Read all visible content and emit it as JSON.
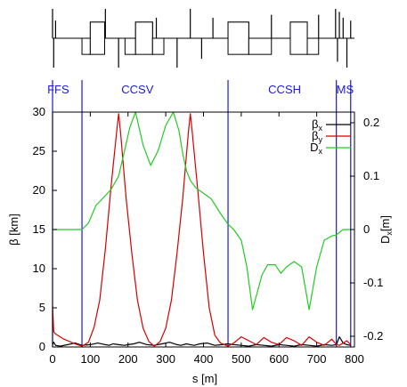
{
  "chart_data": {
    "type": "line",
    "xlabel": "s [m]",
    "ylabel_left": "β [km]",
    "ylabel_right": "D",
    "ylabel_right_sub": "x",
    "ylabel_right_unit": "[m]",
    "xlim": [
      0,
      800
    ],
    "ylim_left": [
      0,
      30
    ],
    "ylim_right": [
      -0.22,
      0.22
    ],
    "x_ticks": [
      "0",
      "100",
      "200",
      "300",
      "400",
      "500",
      "600",
      "700",
      "800"
    ],
    "x_tick_values": [
      0,
      100,
      200,
      300,
      400,
      500,
      600,
      700,
      800
    ],
    "y_left_ticks": [
      "0",
      "5",
      "10",
      "15",
      "20",
      "25",
      "30"
    ],
    "y_left_tick_values": [
      0,
      5,
      10,
      15,
      20,
      25,
      30
    ],
    "y_right_ticks": [
      "-0.2",
      "-0.1",
      "0",
      "0.1",
      "0.2"
    ],
    "y_right_tick_values": [
      -0.2,
      -0.1,
      0,
      0.1,
      0.2
    ],
    "grid": false,
    "legend_position": "top-right",
    "regions": [
      {
        "label": "FFS",
        "label_x": 15
      },
      {
        "label": "CCSV",
        "label_x": 225
      },
      {
        "label": "CCSH",
        "label_x": 615
      },
      {
        "label": "MS",
        "label_x": 775
      }
    ],
    "region_boundaries": [
      0,
      78,
      465,
      752,
      790
    ],
    "series": [
      {
        "name": "β",
        "name_sub": "x",
        "axis": "left",
        "color": "#000000",
        "x": [
          0,
          3,
          8,
          20,
          40,
          60,
          78,
          100,
          120,
          140,
          150,
          160,
          175,
          190,
          200,
          215,
          230,
          250,
          270,
          290,
          310,
          330,
          340,
          355,
          365,
          375,
          390,
          410,
          430,
          450,
          465,
          480,
          500,
          520,
          540,
          560,
          580,
          600,
          620,
          640,
          660,
          680,
          700,
          720,
          740,
          752,
          760,
          770,
          780,
          790
        ],
        "values": [
          0.3,
          0.6,
          0.2,
          0.1,
          0.3,
          0.5,
          0.2,
          0.3,
          0.5,
          0.3,
          0.2,
          0.4,
          0.3,
          0.2,
          0.3,
          0.4,
          0.6,
          0.3,
          0.2,
          0.4,
          0.6,
          0.3,
          0.2,
          0.4,
          0.3,
          0.2,
          0.4,
          0.5,
          0.2,
          0.3,
          0.4,
          0.3,
          0.2,
          0.1,
          0.3,
          0.2,
          0.1,
          0.3,
          0.2,
          0.1,
          0.3,
          0.2,
          0.1,
          0.3,
          0.2,
          0.3,
          1.3,
          0.5,
          0.3,
          0.2
        ]
      },
      {
        "name": "β",
        "name_sub": "y",
        "axis": "left",
        "color": "#d40000",
        "x": [
          0,
          3,
          5,
          10,
          30,
          60,
          78,
          95,
          110,
          125,
          140,
          155,
          170,
          175,
          180,
          195,
          210,
          225,
          240,
          255,
          270,
          285,
          300,
          315,
          330,
          345,
          360,
          365,
          370,
          385,
          400,
          415,
          430,
          445,
          465,
          480,
          500,
          520,
          540,
          560,
          580,
          600,
          620,
          640,
          660,
          680,
          700,
          720,
          740,
          752,
          760,
          770,
          780,
          790
        ],
        "values": [
          5.2,
          2.0,
          1.8,
          1.6,
          1.0,
          0.4,
          0.1,
          0.6,
          2.5,
          6.0,
          12.5,
          20.5,
          27.5,
          29.8,
          27.5,
          19.0,
          12.0,
          6.0,
          2.4,
          0.7,
          0.1,
          0.7,
          2.4,
          6.0,
          12.0,
          19.0,
          27.5,
          29.8,
          27.5,
          20.0,
          12.0,
          5.0,
          1.5,
          0.5,
          0.1,
          0.5,
          1.3,
          0.8,
          0.3,
          1.2,
          0.6,
          0.3,
          1.2,
          0.8,
          0.2,
          1.3,
          0.6,
          0.2,
          1.0,
          0.3,
          0.2,
          0.5,
          0.8,
          0.3
        ]
      },
      {
        "name": "D",
        "name_sub": "x",
        "axis": "right",
        "color": "#22cc22",
        "x": [
          0,
          78,
          95,
          115,
          135,
          155,
          175,
          190,
          205,
          220,
          240,
          260,
          280,
          300,
          320,
          335,
          345,
          355,
          365,
          380,
          400,
          420,
          445,
          465,
          480,
          500,
          515,
          530,
          555,
          570,
          590,
          605,
          620,
          640,
          660,
          680,
          700,
          720,
          740,
          752,
          770,
          790
        ],
        "values": [
          0.0,
          0.0,
          0.012,
          0.045,
          0.06,
          0.075,
          0.1,
          0.145,
          0.192,
          0.22,
          0.158,
          0.12,
          0.148,
          0.195,
          0.22,
          0.185,
          0.142,
          0.11,
          0.092,
          0.078,
          0.068,
          0.058,
          0.03,
          0.01,
          0.0,
          -0.02,
          -0.07,
          -0.15,
          -0.085,
          -0.066,
          -0.066,
          -0.082,
          -0.07,
          -0.06,
          -0.07,
          -0.15,
          -0.07,
          -0.02,
          -0.012,
          -0.01,
          0.0,
          0.0
        ]
      }
    ]
  },
  "lattice": {
    "line_color": "#000000",
    "elements": [
      {
        "s": 0,
        "len": 0,
        "h": 1.0,
        "kind": "marker"
      },
      {
        "s": 3,
        "len": 0,
        "h": -1.0,
        "kind": "marker"
      },
      {
        "s": 8,
        "len": 0,
        "h": 0.6,
        "kind": "marker"
      },
      {
        "s": 78,
        "len": 22,
        "h": -0.55,
        "kind": "box"
      },
      {
        "s": 100,
        "len": 38,
        "h": 0.55,
        "kind": "box"
      },
      {
        "s": 100,
        "len": 38,
        "h": 0,
        "kind": "box-full"
      },
      {
        "s": 140,
        "len": 0,
        "h": 1.0,
        "kind": "marker"
      },
      {
        "s": 175,
        "len": 0,
        "h": -1.0,
        "kind": "marker"
      },
      {
        "s": 192,
        "len": 28,
        "h": -0.55,
        "kind": "box"
      },
      {
        "s": 220,
        "len": 45,
        "h": 0.55,
        "kind": "box"
      },
      {
        "s": 220,
        "len": 45,
        "h": 0,
        "kind": "box-full"
      },
      {
        "s": 265,
        "len": 30,
        "h": -0.55,
        "kind": "box"
      },
      {
        "s": 275,
        "len": 0,
        "h": 0.7,
        "kind": "marker"
      },
      {
        "s": 330,
        "len": 0,
        "h": -1.0,
        "kind": "marker"
      },
      {
        "s": 365,
        "len": 0,
        "h": 1.0,
        "kind": "marker"
      },
      {
        "s": 395,
        "len": 0,
        "h": -0.7,
        "kind": "marker"
      },
      {
        "s": 425,
        "len": 0,
        "h": 0.7,
        "kind": "marker"
      },
      {
        "s": 465,
        "len": 55,
        "h": 0.55,
        "kind": "box"
      },
      {
        "s": 465,
        "len": 55,
        "h": 0,
        "kind": "box-full"
      },
      {
        "s": 520,
        "len": 60,
        "h": -0.55,
        "kind": "box"
      },
      {
        "s": 580,
        "len": 0,
        "h": 0.8,
        "kind": "marker"
      },
      {
        "s": 630,
        "len": 45,
        "h": 0.55,
        "kind": "box"
      },
      {
        "s": 630,
        "len": 45,
        "h": 0,
        "kind": "box-full"
      },
      {
        "s": 675,
        "len": 30,
        "h": -0.55,
        "kind": "box"
      },
      {
        "s": 705,
        "len": 0,
        "h": 0.8,
        "kind": "marker"
      },
      {
        "s": 750,
        "len": 0,
        "h": 1.0,
        "kind": "marker"
      },
      {
        "s": 755,
        "len": 0,
        "h": -0.8,
        "kind": "marker"
      },
      {
        "s": 760,
        "len": 0,
        "h": 0.9,
        "kind": "marker"
      },
      {
        "s": 770,
        "len": 0,
        "h": 0.7,
        "kind": "marker"
      },
      {
        "s": 780,
        "len": 0,
        "h": -1.0,
        "kind": "marker"
      },
      {
        "s": 790,
        "len": 0,
        "h": 0.6,
        "kind": "marker"
      }
    ]
  }
}
